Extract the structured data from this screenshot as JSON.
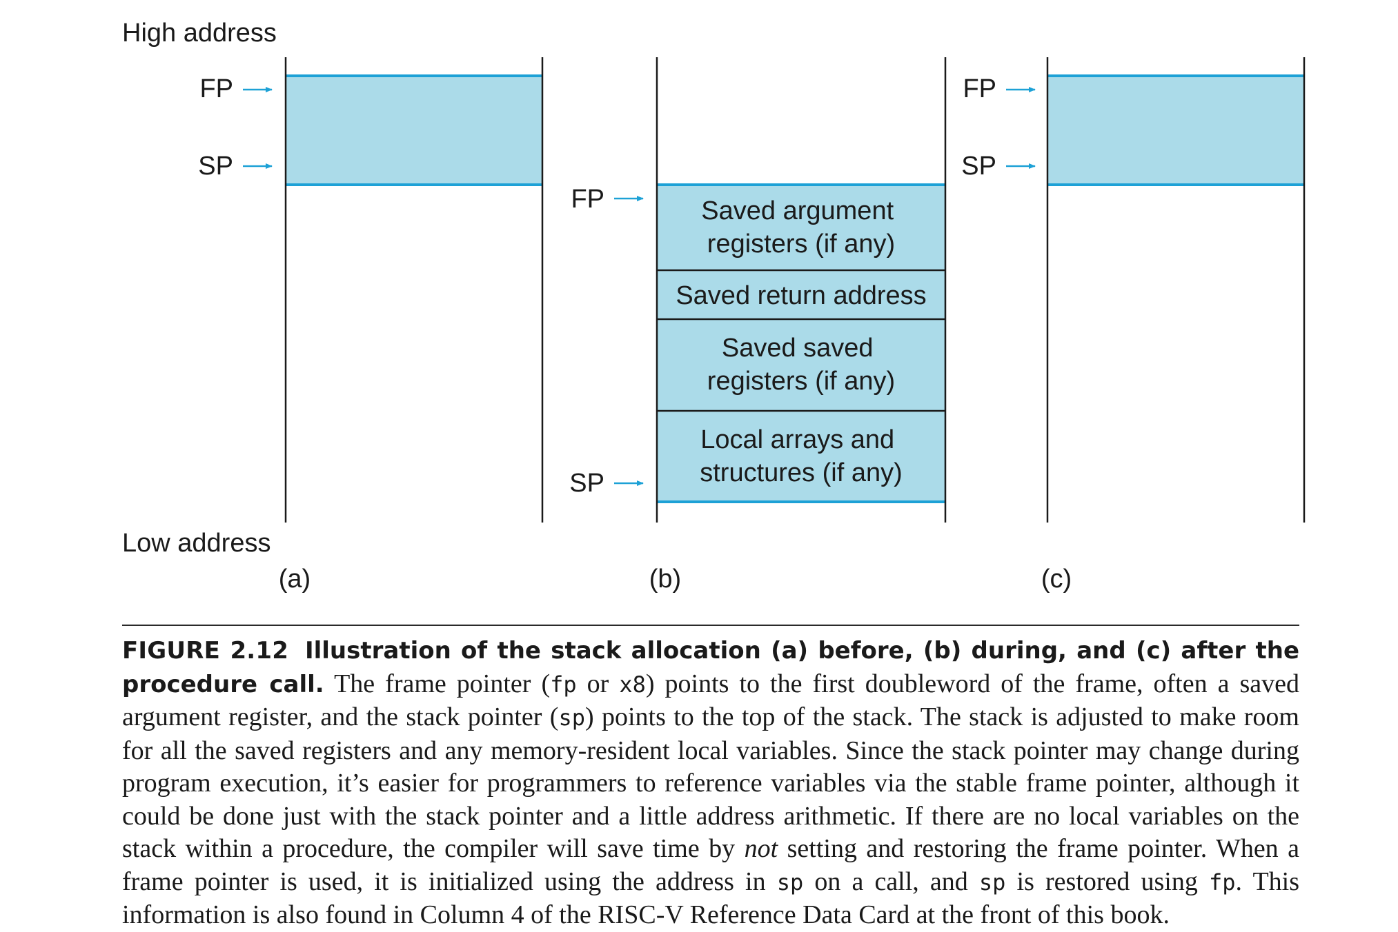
{
  "diagram": {
    "high_address_label": "High address",
    "low_address_label": "Low address",
    "fill_color": "#abdbe9",
    "edge_color": "#1da1d6",
    "arrow_color": "#1da1d6",
    "panels": [
      {
        "caption": "(a)",
        "pointers": [
          {
            "label": "FP"
          },
          {
            "label": "SP"
          }
        ],
        "blocks": [
          {
            "lines": []
          }
        ]
      },
      {
        "caption": "(b)",
        "pointers": [
          {
            "label": "FP"
          },
          {
            "label": "SP"
          }
        ],
        "blocks": [
          {
            "lines": [
              "Saved argument",
              "registers (if any)"
            ]
          },
          {
            "lines": [
              "Saved return address"
            ]
          },
          {
            "lines": [
              "Saved saved",
              "registers (if any)"
            ]
          },
          {
            "lines": [
              "Local arrays and",
              "structures (if any)"
            ]
          }
        ]
      },
      {
        "caption": "(c)",
        "pointers": [
          {
            "label": "FP"
          },
          {
            "label": "SP"
          }
        ],
        "blocks": [
          {
            "lines": []
          }
        ]
      }
    ]
  },
  "caption": {
    "label": "FIGURE 2.12",
    "title": "Illustration of the stack allocation (a) before, (b) during, and (c) after the procedure call.",
    "t1": " The frame pointer (",
    "code_fp": "fp",
    "t2": " or ",
    "code_x8": "x8",
    "t3": ") points to the first doubleword of the frame, often a saved argument register, and the stack pointer (",
    "code_sp": "sp",
    "t4": ") points to the top of the stack. The stack is adjusted to make room for all the saved registers and any memory-resident local variables. Since the stack pointer may change during program execution, it’s easier for programmers to reference variables via the stable frame pointer, although it could be done just with the stack pointer and a little address arithmetic. If there are no local variables on the stack within a procedure, the compiler will save time by ",
    "em_not": "not",
    "t5": " setting and restoring the frame pointer. When a frame pointer is used, it is initialized using the address in ",
    "code_sp2": "sp",
    "t6": " on a call, and ",
    "code_sp3": "sp",
    "t7": " is restored using ",
    "code_fp2": "fp",
    "t8": ". This information is also found in Column 4 of the RISC-V Reference Data Card at the front of this book."
  }
}
